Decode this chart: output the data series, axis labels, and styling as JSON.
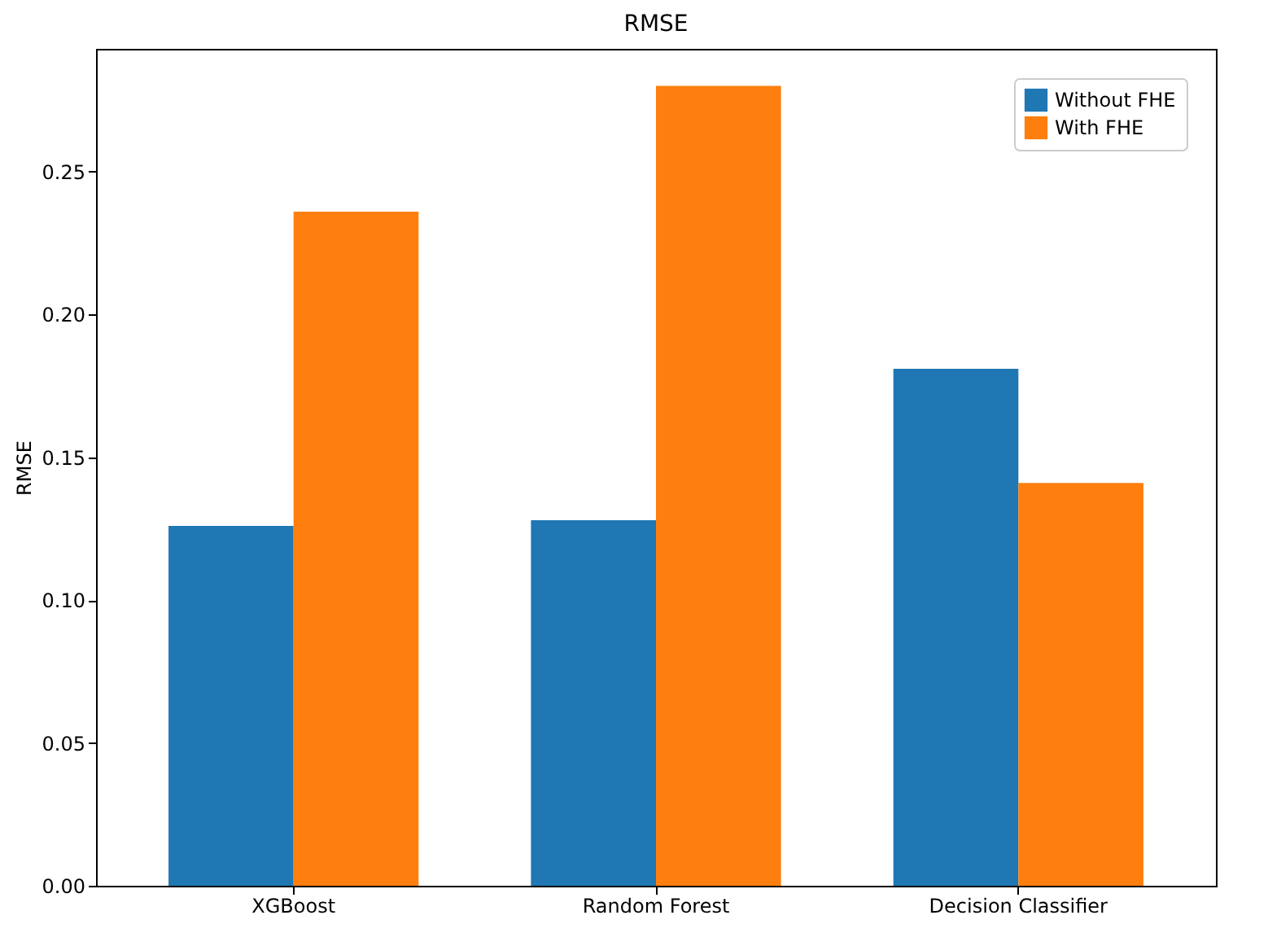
{
  "chart_data": {
    "type": "bar",
    "title": "RMSE",
    "ylabel": "RMSE",
    "categories": [
      "XGBoost",
      "Random Forest",
      "Decision Classifier"
    ],
    "series": [
      {
        "name": "Without FHE",
        "color": "#1f77b4",
        "values": [
          0.126,
          0.128,
          0.181
        ]
      },
      {
        "name": "With FHE",
        "color": "#ff7f0e",
        "values": [
          0.236,
          0.28,
          0.141
        ]
      }
    ],
    "ylim": [
      0,
      0.293
    ],
    "yticks": [
      {
        "value": 0,
        "label": "0.00"
      },
      {
        "value": 0.05,
        "label": "0.05"
      },
      {
        "value": 0.1,
        "label": "0.10"
      },
      {
        "value": 0.15,
        "label": "0.15"
      },
      {
        "value": 0.2,
        "label": "0.20"
      },
      {
        "value": 0.25,
        "label": "0.25"
      }
    ],
    "grid": false,
    "legend": "top right"
  }
}
